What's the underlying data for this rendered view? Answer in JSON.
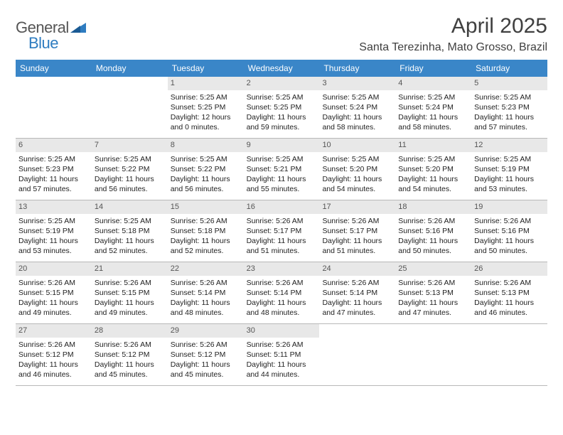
{
  "logo": {
    "text1": "General",
    "text2": "Blue"
  },
  "title": "April 2025",
  "location": "Santa Terezinha, Mato Grosso, Brazil",
  "colors": {
    "header_bg": "#3a86c8",
    "header_text": "#ffffff",
    "daynum_bg": "#e8e8e8",
    "daynum_text": "#555555",
    "border": "#b8b8b8",
    "body_text": "#222222",
    "logo_gray": "#555555",
    "logo_blue": "#2e7cc0"
  },
  "weekdays": [
    "Sunday",
    "Monday",
    "Tuesday",
    "Wednesday",
    "Thursday",
    "Friday",
    "Saturday"
  ],
  "weeks": [
    [
      {
        "n": "",
        "sr": "",
        "ss": "",
        "d1": "",
        "d2": ""
      },
      {
        "n": "",
        "sr": "",
        "ss": "",
        "d1": "",
        "d2": ""
      },
      {
        "n": "1",
        "sr": "Sunrise: 5:25 AM",
        "ss": "Sunset: 5:25 PM",
        "d1": "Daylight: 12 hours",
        "d2": "and 0 minutes."
      },
      {
        "n": "2",
        "sr": "Sunrise: 5:25 AM",
        "ss": "Sunset: 5:25 PM",
        "d1": "Daylight: 11 hours",
        "d2": "and 59 minutes."
      },
      {
        "n": "3",
        "sr": "Sunrise: 5:25 AM",
        "ss": "Sunset: 5:24 PM",
        "d1": "Daylight: 11 hours",
        "d2": "and 58 minutes."
      },
      {
        "n": "4",
        "sr": "Sunrise: 5:25 AM",
        "ss": "Sunset: 5:24 PM",
        "d1": "Daylight: 11 hours",
        "d2": "and 58 minutes."
      },
      {
        "n": "5",
        "sr": "Sunrise: 5:25 AM",
        "ss": "Sunset: 5:23 PM",
        "d1": "Daylight: 11 hours",
        "d2": "and 57 minutes."
      }
    ],
    [
      {
        "n": "6",
        "sr": "Sunrise: 5:25 AM",
        "ss": "Sunset: 5:23 PM",
        "d1": "Daylight: 11 hours",
        "d2": "and 57 minutes."
      },
      {
        "n": "7",
        "sr": "Sunrise: 5:25 AM",
        "ss": "Sunset: 5:22 PM",
        "d1": "Daylight: 11 hours",
        "d2": "and 56 minutes."
      },
      {
        "n": "8",
        "sr": "Sunrise: 5:25 AM",
        "ss": "Sunset: 5:22 PM",
        "d1": "Daylight: 11 hours",
        "d2": "and 56 minutes."
      },
      {
        "n": "9",
        "sr": "Sunrise: 5:25 AM",
        "ss": "Sunset: 5:21 PM",
        "d1": "Daylight: 11 hours",
        "d2": "and 55 minutes."
      },
      {
        "n": "10",
        "sr": "Sunrise: 5:25 AM",
        "ss": "Sunset: 5:20 PM",
        "d1": "Daylight: 11 hours",
        "d2": "and 54 minutes."
      },
      {
        "n": "11",
        "sr": "Sunrise: 5:25 AM",
        "ss": "Sunset: 5:20 PM",
        "d1": "Daylight: 11 hours",
        "d2": "and 54 minutes."
      },
      {
        "n": "12",
        "sr": "Sunrise: 5:25 AM",
        "ss": "Sunset: 5:19 PM",
        "d1": "Daylight: 11 hours",
        "d2": "and 53 minutes."
      }
    ],
    [
      {
        "n": "13",
        "sr": "Sunrise: 5:25 AM",
        "ss": "Sunset: 5:19 PM",
        "d1": "Daylight: 11 hours",
        "d2": "and 53 minutes."
      },
      {
        "n": "14",
        "sr": "Sunrise: 5:25 AM",
        "ss": "Sunset: 5:18 PM",
        "d1": "Daylight: 11 hours",
        "d2": "and 52 minutes."
      },
      {
        "n": "15",
        "sr": "Sunrise: 5:26 AM",
        "ss": "Sunset: 5:18 PM",
        "d1": "Daylight: 11 hours",
        "d2": "and 52 minutes."
      },
      {
        "n": "16",
        "sr": "Sunrise: 5:26 AM",
        "ss": "Sunset: 5:17 PM",
        "d1": "Daylight: 11 hours",
        "d2": "and 51 minutes."
      },
      {
        "n": "17",
        "sr": "Sunrise: 5:26 AM",
        "ss": "Sunset: 5:17 PM",
        "d1": "Daylight: 11 hours",
        "d2": "and 51 minutes."
      },
      {
        "n": "18",
        "sr": "Sunrise: 5:26 AM",
        "ss": "Sunset: 5:16 PM",
        "d1": "Daylight: 11 hours",
        "d2": "and 50 minutes."
      },
      {
        "n": "19",
        "sr": "Sunrise: 5:26 AM",
        "ss": "Sunset: 5:16 PM",
        "d1": "Daylight: 11 hours",
        "d2": "and 50 minutes."
      }
    ],
    [
      {
        "n": "20",
        "sr": "Sunrise: 5:26 AM",
        "ss": "Sunset: 5:15 PM",
        "d1": "Daylight: 11 hours",
        "d2": "and 49 minutes."
      },
      {
        "n": "21",
        "sr": "Sunrise: 5:26 AM",
        "ss": "Sunset: 5:15 PM",
        "d1": "Daylight: 11 hours",
        "d2": "and 49 minutes."
      },
      {
        "n": "22",
        "sr": "Sunrise: 5:26 AM",
        "ss": "Sunset: 5:14 PM",
        "d1": "Daylight: 11 hours",
        "d2": "and 48 minutes."
      },
      {
        "n": "23",
        "sr": "Sunrise: 5:26 AM",
        "ss": "Sunset: 5:14 PM",
        "d1": "Daylight: 11 hours",
        "d2": "and 48 minutes."
      },
      {
        "n": "24",
        "sr": "Sunrise: 5:26 AM",
        "ss": "Sunset: 5:14 PM",
        "d1": "Daylight: 11 hours",
        "d2": "and 47 minutes."
      },
      {
        "n": "25",
        "sr": "Sunrise: 5:26 AM",
        "ss": "Sunset: 5:13 PM",
        "d1": "Daylight: 11 hours",
        "d2": "and 47 minutes."
      },
      {
        "n": "26",
        "sr": "Sunrise: 5:26 AM",
        "ss": "Sunset: 5:13 PM",
        "d1": "Daylight: 11 hours",
        "d2": "and 46 minutes."
      }
    ],
    [
      {
        "n": "27",
        "sr": "Sunrise: 5:26 AM",
        "ss": "Sunset: 5:12 PM",
        "d1": "Daylight: 11 hours",
        "d2": "and 46 minutes."
      },
      {
        "n": "28",
        "sr": "Sunrise: 5:26 AM",
        "ss": "Sunset: 5:12 PM",
        "d1": "Daylight: 11 hours",
        "d2": "and 45 minutes."
      },
      {
        "n": "29",
        "sr": "Sunrise: 5:26 AM",
        "ss": "Sunset: 5:12 PM",
        "d1": "Daylight: 11 hours",
        "d2": "and 45 minutes."
      },
      {
        "n": "30",
        "sr": "Sunrise: 5:26 AM",
        "ss": "Sunset: 5:11 PM",
        "d1": "Daylight: 11 hours",
        "d2": "and 44 minutes."
      },
      {
        "n": "",
        "sr": "",
        "ss": "",
        "d1": "",
        "d2": ""
      },
      {
        "n": "",
        "sr": "",
        "ss": "",
        "d1": "",
        "d2": ""
      },
      {
        "n": "",
        "sr": "",
        "ss": "",
        "d1": "",
        "d2": ""
      }
    ]
  ]
}
